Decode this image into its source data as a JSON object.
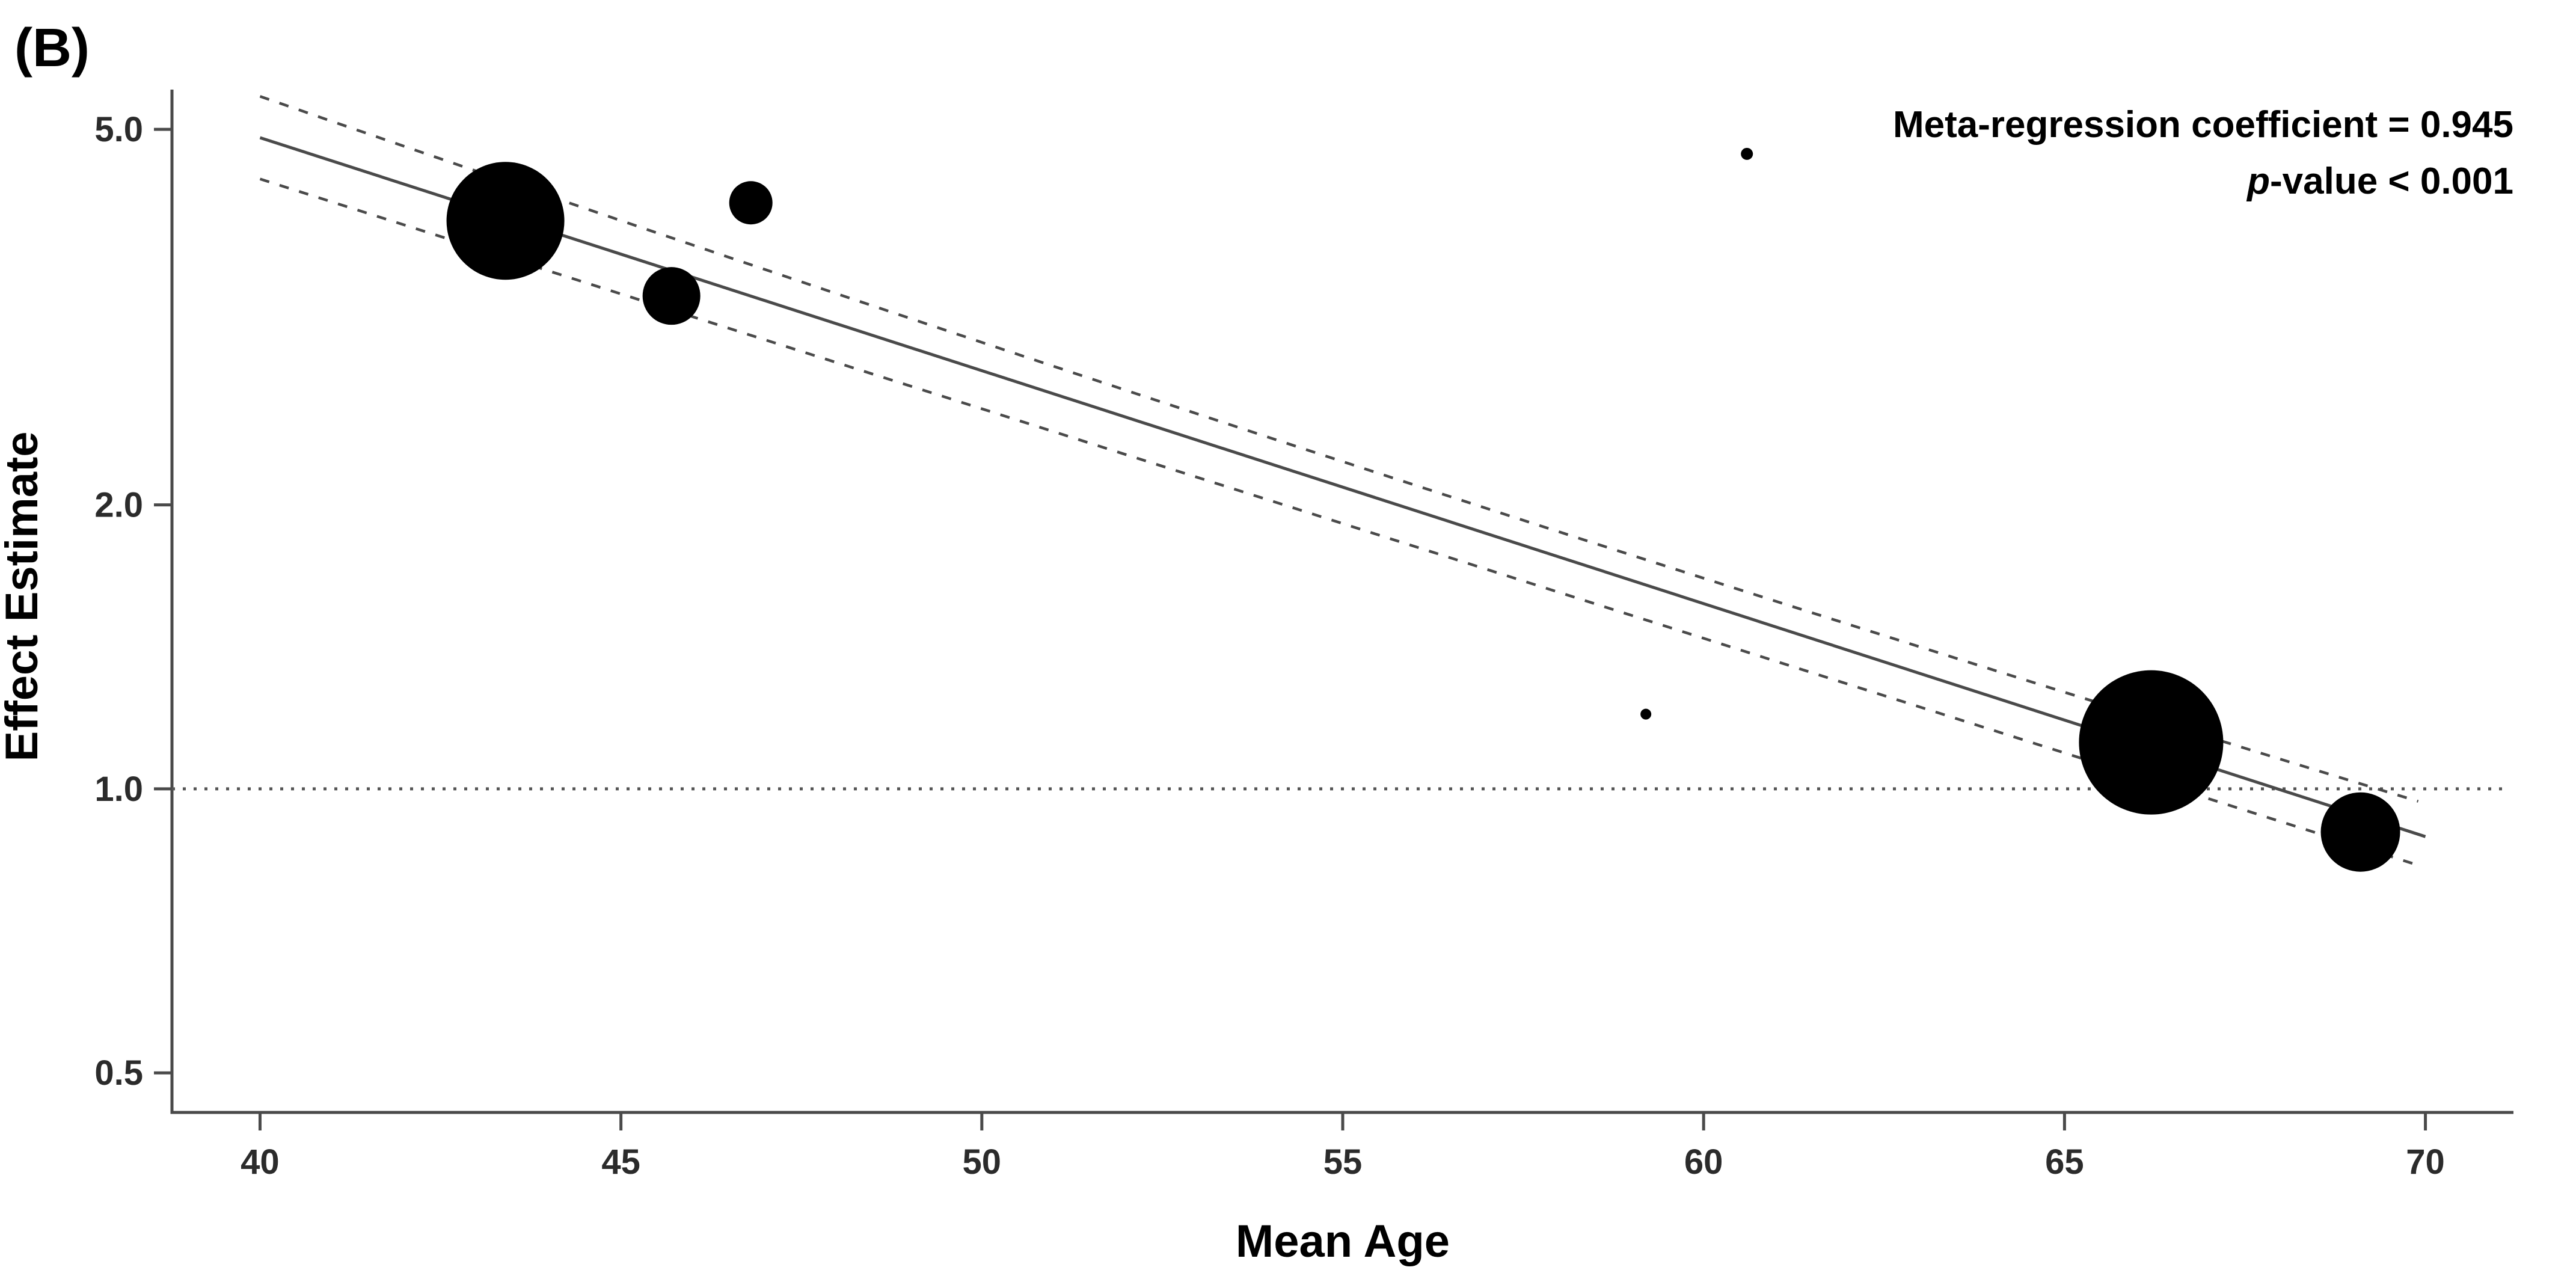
{
  "panel_label": "(B)",
  "annotation": {
    "line1": "Meta-regression coefficient = 0.945",
    "line2_italic": "p",
    "line2_rest": "-value < 0.001"
  },
  "chart_data": {
    "type": "scatter",
    "subtype": "bubble-meta-regression",
    "title": "",
    "xlabel": "Mean Age",
    "ylabel": "Effect Estimate",
    "x_ticks": [
      40,
      45,
      50,
      55,
      60,
      65,
      70
    ],
    "y_ticks": [
      5.0,
      2.0,
      1.0,
      0.5
    ],
    "y_tick_labels": [
      "5.0",
      "2.0",
      "1.0",
      "0.5"
    ],
    "x_range": [
      38.78,
      71.22
    ],
    "y_range": [
      0.454,
      5.51
    ],
    "y_scale": "log",
    "grid": false,
    "legend": "none",
    "reference_line_y": 1.0,
    "points": [
      {
        "mean_age": 43.4,
        "effect": 4.0,
        "r": 98
      },
      {
        "mean_age": 45.7,
        "effect": 3.33,
        "r": 48
      },
      {
        "mean_age": 46.8,
        "effect": 4.18,
        "r": 36
      },
      {
        "mean_age": 60.6,
        "effect": 4.71,
        "r": 10
      },
      {
        "mean_age": 59.2,
        "effect": 1.2,
        "r": 9
      },
      {
        "mean_age": 66.2,
        "effect": 1.12,
        "r": 120
      },
      {
        "mean_age": 69.1,
        "effect": 0.9,
        "r": 66
      }
    ],
    "regression_line": {
      "x": [
        40.0,
        70.0
      ],
      "y": [
        4.9,
        0.89
      ]
    },
    "ci_upper": {
      "x": [
        40.0,
        55.1,
        69.9
      ],
      "y": [
        5.42,
        2.21,
        0.97
      ]
    },
    "ci_lower": {
      "x": [
        40.0,
        55.1,
        69.9
      ],
      "y": [
        4.43,
        1.9,
        0.83
      ]
    },
    "colors": {
      "bubble": "#000000",
      "line": "#4a4a4a",
      "ci_line": "#4a4a4a",
      "reference_line": "#555555",
      "axis": "#4a4a4a",
      "text": "#1a1a1a"
    }
  }
}
